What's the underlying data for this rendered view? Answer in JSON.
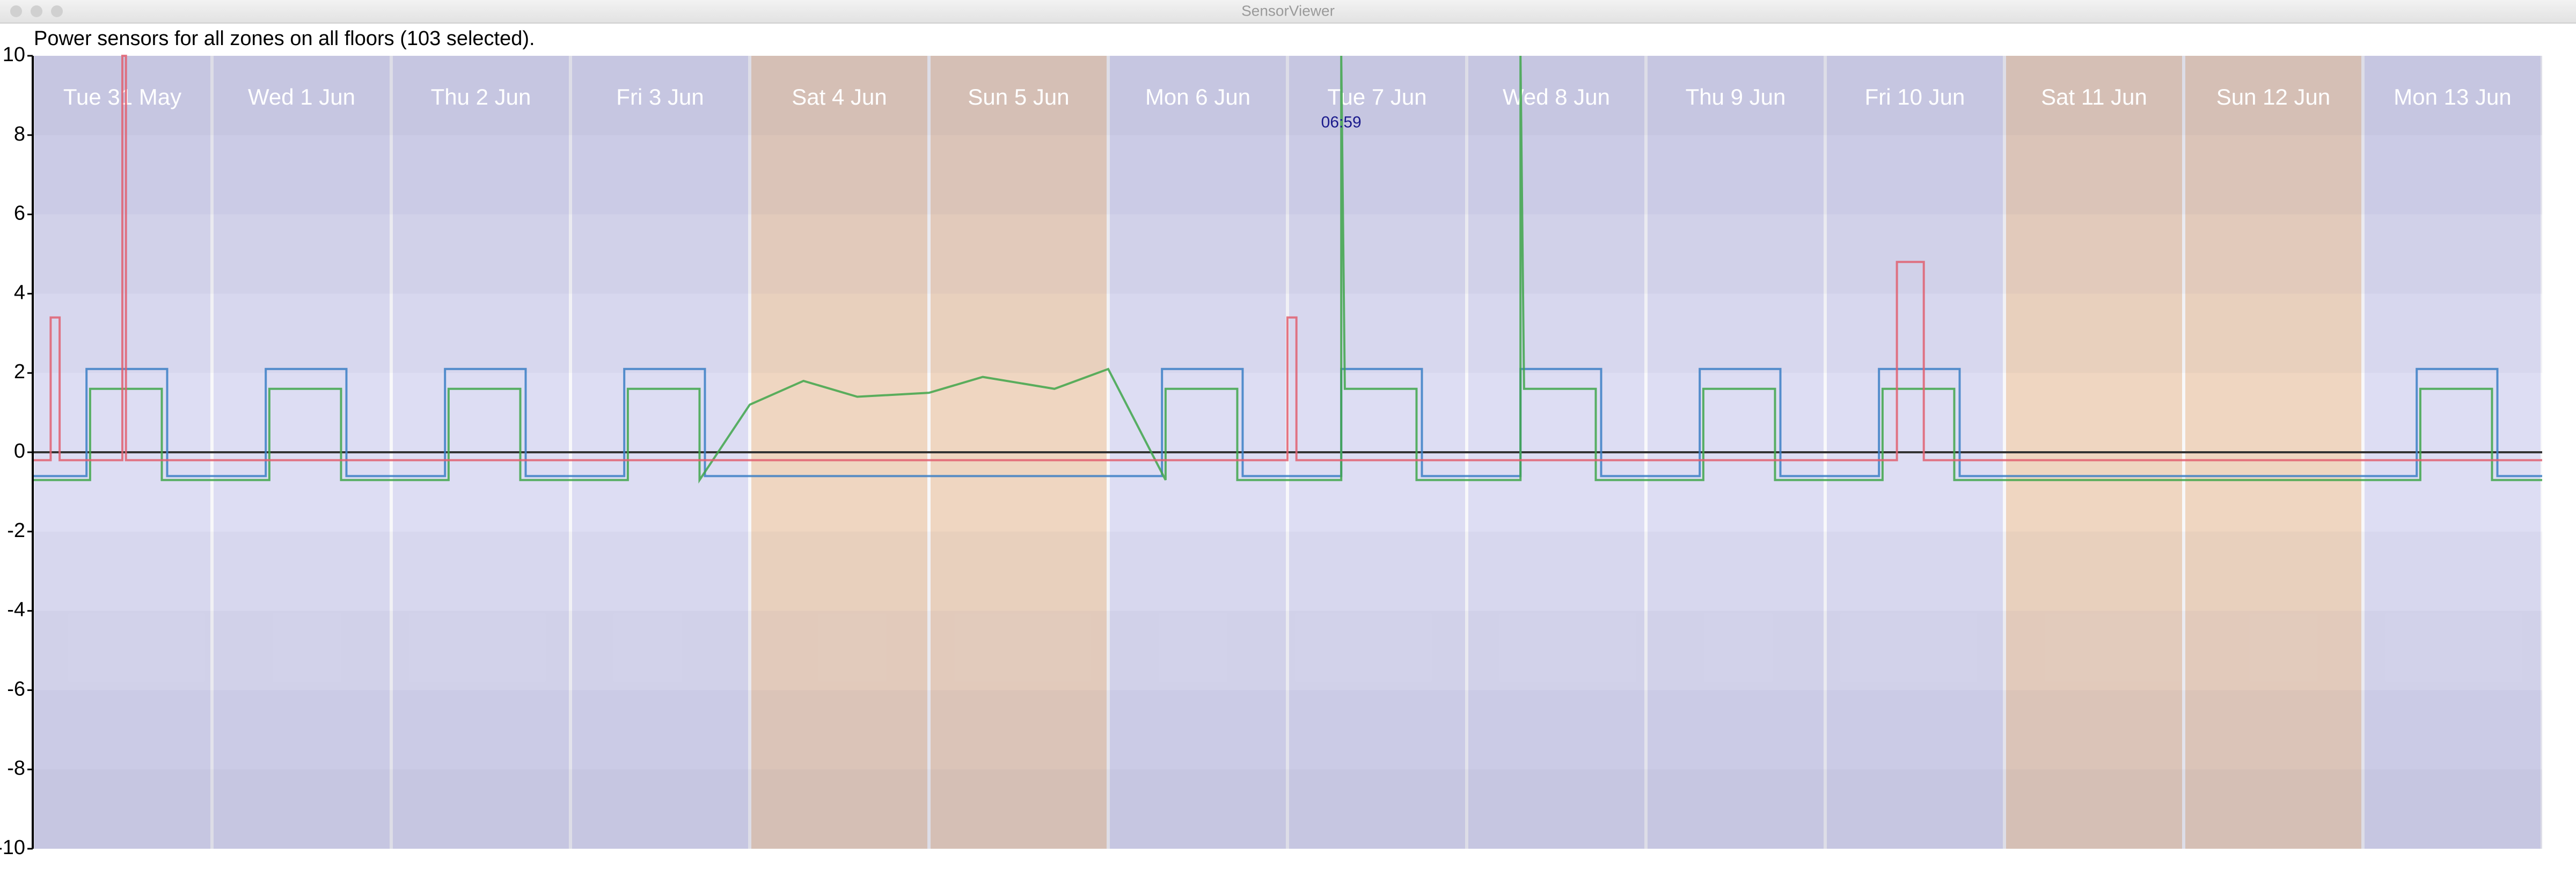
{
  "window": {
    "title": "SensorViewer"
  },
  "chart_data": {
    "type": "line",
    "title": "Power sensors for all zones on all floors (103 selected).",
    "categories": [
      "Tue 31 May",
      "Wed 1 Jun",
      "Thu 2 Jun",
      "Fri 3 Jun",
      "Sat 4 Jun",
      "Sun 5 Jun",
      "Mon 6 Jun",
      "Tue 7 Jun",
      "Wed 8 Jun",
      "Thu 9 Jun",
      "Fri 10 Jun",
      "Sat 11 Jun",
      "Sun 12 Jun",
      "Mon 13 Jun"
    ],
    "weekend": [
      false,
      false,
      false,
      false,
      true,
      true,
      false,
      false,
      false,
      false,
      false,
      true,
      true,
      false
    ],
    "weekday_color": "#e4e4f8",
    "weekend_color": "#f6dcc4",
    "xlim": [
      0,
      14
    ],
    "ylim": [
      -10,
      10
    ],
    "yticks": [
      10,
      8,
      6,
      4,
      2,
      0,
      -2,
      -4,
      -6,
      -8,
      -10
    ],
    "annotation": {
      "text": "06:59",
      "x": 7.3,
      "y": 8.3,
      "color": "#1a1a8c"
    },
    "series": [
      {
        "color": "#3b7fc4",
        "x": [
          0,
          0.3,
          0.3,
          0.75,
          0.75,
          1.3,
          1.3,
          1.75,
          1.75,
          2.3,
          2.3,
          2.75,
          2.75,
          3.3,
          3.3,
          3.75,
          3.75,
          6.3,
          6.3,
          6.75,
          6.75,
          7.3,
          7.3,
          7.75,
          7.75,
          8.3,
          8.3,
          8.75,
          8.75,
          9.3,
          9.3,
          9.75,
          9.75,
          10.3,
          10.3,
          10.75,
          10.75,
          13.3,
          13.3,
          13.75,
          13.75,
          14
        ],
        "values": [
          -0.6,
          -0.6,
          2.1,
          2.1,
          -0.6,
          -0.6,
          2.1,
          2.1,
          -0.6,
          -0.6,
          2.1,
          2.1,
          -0.6,
          -0.6,
          2.1,
          2.1,
          -0.6,
          -0.6,
          2.1,
          2.1,
          -0.6,
          -0.6,
          2.1,
          2.1,
          -0.6,
          -0.6,
          2.1,
          2.1,
          -0.6,
          -0.6,
          2.1,
          2.1,
          -0.6,
          -0.6,
          2.1,
          2.1,
          -0.6,
          -0.6,
          2.1,
          2.1,
          -0.6,
          -0.6
        ]
      },
      {
        "color": "#3fa64a",
        "x": [
          0,
          0.32,
          0.32,
          0.72,
          0.72,
          1.32,
          1.32,
          1.72,
          1.72,
          2.32,
          2.32,
          2.72,
          2.72,
          3.32,
          3.32,
          3.72,
          3.72,
          4.0,
          4.3,
          4.6,
          5.0,
          5.3,
          5.7,
          6.0,
          6.32,
          6.32,
          6.72,
          6.72,
          7.3,
          7.3,
          7.32,
          7.72,
          7.72,
          8.3,
          8.3,
          8.32,
          8.72,
          8.72,
          9.32,
          9.32,
          9.72,
          9.72,
          10.32,
          10.32,
          10.72,
          10.72,
          13.32,
          13.32,
          13.72,
          13.72,
          14
        ],
        "values": [
          -0.7,
          -0.7,
          1.6,
          1.6,
          -0.7,
          -0.7,
          1.6,
          1.6,
          -0.7,
          -0.7,
          1.6,
          1.6,
          -0.7,
          -0.7,
          1.6,
          1.6,
          -0.7,
          1.2,
          1.8,
          1.4,
          1.5,
          1.9,
          1.6,
          2.1,
          -0.7,
          1.6,
          1.6,
          -0.7,
          -0.7,
          10,
          1.6,
          1.6,
          -0.7,
          -0.7,
          10,
          1.6,
          1.6,
          -0.7,
          -0.7,
          1.6,
          1.6,
          -0.7,
          -0.7,
          1.6,
          1.6,
          -0.7,
          -0.7,
          1.6,
          1.6,
          -0.7,
          -0.7
        ]
      },
      {
        "color": "#e06070",
        "x": [
          0,
          0.1,
          0.1,
          0.15,
          0.15,
          0.5,
          0.5,
          0.52,
          0.52,
          7.0,
          7.0,
          7.05,
          7.05,
          10.4,
          10.4,
          10.55,
          10.55,
          14
        ],
        "values": [
          -0.2,
          -0.2,
          3.4,
          3.4,
          -0.2,
          -0.2,
          10,
          10,
          -0.2,
          -0.2,
          3.4,
          3.4,
          -0.2,
          -0.2,
          4.8,
          4.8,
          -0.2,
          -0.2
        ]
      }
    ]
  }
}
